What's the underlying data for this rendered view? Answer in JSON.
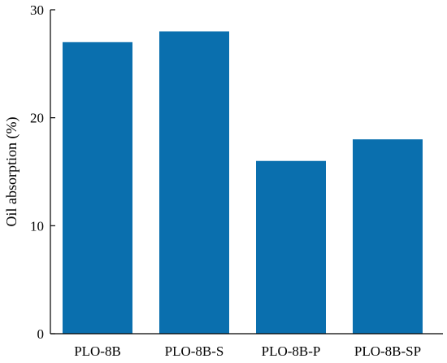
{
  "chart_data": {
    "type": "bar",
    "title": "",
    "xlabel": "",
    "ylabel": "Oil absorption (%)",
    "categories": [
      "PLO-8B",
      "PLO-8B-S",
      "PLO-8B-P",
      "PLO-8B-SP"
    ],
    "values": [
      27,
      28,
      16,
      18
    ],
    "ylim": [
      0,
      30
    ],
    "yticks": [
      "0",
      "10",
      "20",
      "30"
    ],
    "grid": false,
    "bar_color": "#0a6fae"
  }
}
